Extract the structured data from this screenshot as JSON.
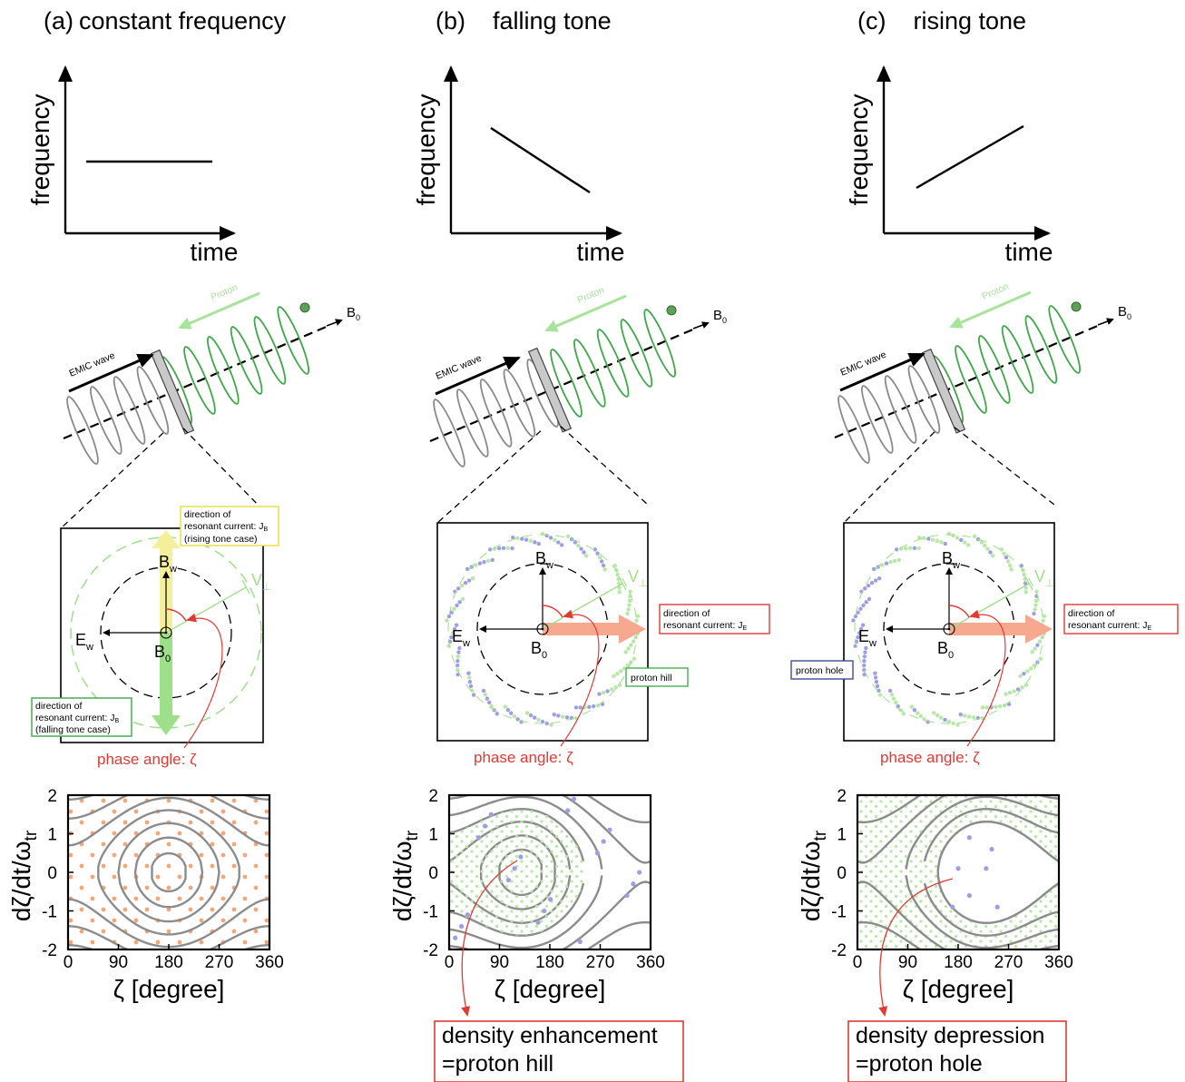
{
  "colors": {
    "red": "#e03a33",
    "green_wave": "#3fa84a",
    "light_green": "#9ee08a",
    "proton_arrow": "#a8e39a",
    "yellow": "#f3ef9a",
    "salmon": "#f7a98f",
    "orange_dot": "#f0a878",
    "blue_dot": "#9e9ee6",
    "gray_curve": "#8c8c8c",
    "box_yellow": "#e9df3b",
    "box_green": "#3aa746",
    "box_blue": "#2d3e8c"
  },
  "panels": [
    {
      "title_letter": "(a)",
      "title_text": "constant frequency",
      "freq_shape": "constant",
      "ylabel": "frequency",
      "xlabel": "time",
      "emic_label": "EMIC wave",
      "proton_label": "Proton",
      "b0_label": "B",
      "b0_sub": "0",
      "bw_label": "B",
      "bw_sub": "w",
      "ew_label": "E",
      "ew_sub": "w",
      "vperp_label": "V",
      "vperp_sub": "⊥",
      "current_box_top": [
        "direction of",
        "resonant current: J",
        "(rising tone case)"
      ],
      "current_sub_top": "B",
      "current_box_bottom": [
        "direction of",
        "resonant current: J",
        "(falling tone case)"
      ],
      "current_sub_bottom": "B",
      "phase_label": "phase angle: ζ",
      "dot_pattern": "uniform-orange",
      "x_ticks": [
        "0",
        "90",
        "180",
        "270",
        "360"
      ],
      "y_ticks": [
        "2",
        "1",
        "0",
        "-1",
        "-2"
      ],
      "x_axis_label": "ζ [degree]",
      "y_axis_label": "dζ/dt/ω",
      "y_axis_sub": "tr"
    },
    {
      "title_letter": "(b)",
      "title_text": "falling tone",
      "freq_shape": "falling",
      "ylabel": "frequency",
      "xlabel": "time",
      "emic_label": "EMIC wave",
      "proton_label": "Proton",
      "b0_label": "B",
      "b0_sub": "0",
      "bw_label": "B",
      "bw_sub": "w",
      "ew_label": "E",
      "ew_sub": "w",
      "vperp_label": "V",
      "vperp_sub": "⊥",
      "current_box": [
        "direction of",
        "resonant current: J"
      ],
      "current_sub": "E",
      "side_label": "proton hill",
      "phase_label": "phase angle: ζ",
      "x_ticks": [
        "0",
        "90",
        "180",
        "270",
        "360"
      ],
      "y_ticks": [
        "2",
        "1",
        "0",
        "-1",
        "-2"
      ],
      "x_axis_label": "ζ [degree]",
      "y_axis_label": "dζ/dt/ω",
      "y_axis_sub": "tr",
      "bottom_box": [
        "density enhancement",
        "=proton hill"
      ]
    },
    {
      "title_letter": "(c)",
      "title_text": "rising tone",
      "freq_shape": "rising",
      "ylabel": "frequency",
      "xlabel": "time",
      "emic_label": "EMIC wave",
      "proton_label": "Proton",
      "b0_label": "B",
      "b0_sub": "0",
      "bw_label": "B",
      "bw_sub": "w",
      "ew_label": "E",
      "ew_sub": "w",
      "vperp_label": "V",
      "vperp_sub": "⊥",
      "current_box": [
        "direction of",
        "resonant current: J"
      ],
      "current_sub": "E",
      "side_label": "proton hole",
      "phase_label": "phase angle: ζ",
      "x_ticks": [
        "0",
        "90",
        "180",
        "270",
        "360"
      ],
      "y_ticks": [
        "2",
        "1",
        "0",
        "-1",
        "-2"
      ],
      "x_axis_label": "ζ [degree]",
      "y_axis_label": "dζ/dt/ω",
      "y_axis_sub": "tr",
      "bottom_box": [
        "density depression",
        "=proton hole"
      ]
    }
  ]
}
